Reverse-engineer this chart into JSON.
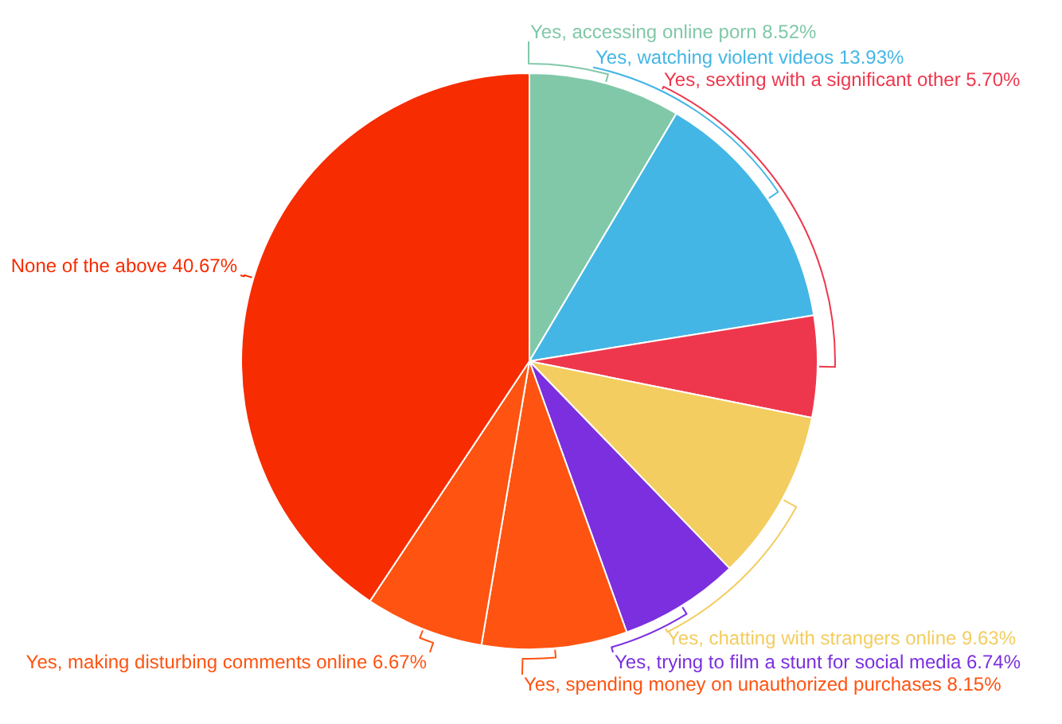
{
  "chart_data": {
    "type": "pie",
    "categories": [
      "Yes, accessing online porn",
      "Yes, watching violent videos",
      "Yes, sexting with a significant other",
      "Yes, chatting with strangers online",
      "Yes, trying to film a stunt for social media",
      "Yes, spending money on unauthorized purchases",
      "Yes, making disturbing comments online",
      "None of the above"
    ],
    "values": [
      8.52,
      13.93,
      5.7,
      9.63,
      6.74,
      8.15,
      6.67,
      40.67
    ],
    "value_labels": [
      "8.52%",
      "13.93%",
      "5.70%",
      "9.63%",
      "6.74%",
      "8.15%",
      "6.67%",
      "40.67%"
    ],
    "colors": [
      "#80c8a8",
      "#44b6e5",
      "#ee374d",
      "#f3cd60",
      "#7b2fdf",
      "#fe5311",
      "#fe5311",
      "#f72c00"
    ]
  }
}
